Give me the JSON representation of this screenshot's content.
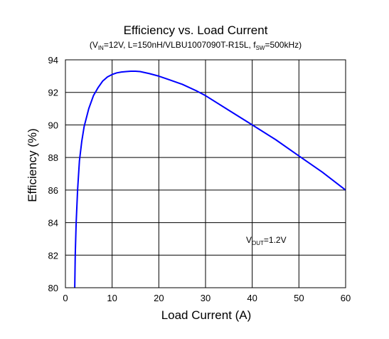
{
  "chart_data": {
    "type": "line",
    "title": "Efficiency vs. Load Current",
    "subtitle_parts": {
      "open": "(V",
      "vin_sub": "IN",
      "mid": "=12V, L=150nH/VLBU1007090T-R15L, f",
      "fsw_sub": "SW",
      "close": "=500kHz)"
    },
    "xlabel": "Load Current (A)",
    "ylabel": "Efficiency (%)",
    "xlim": [
      0,
      60
    ],
    "ylim": [
      80,
      94
    ],
    "xticks": [
      "0",
      "10",
      "20",
      "30",
      "40",
      "50",
      "60"
    ],
    "yticks": [
      "80",
      "82",
      "84",
      "86",
      "88",
      "90",
      "92",
      "94"
    ],
    "grid": true,
    "annotation": {
      "main": "V",
      "sub": "OUT",
      "rest": "=1.2V"
    },
    "series": [
      {
        "color": "#0000ff",
        "x": [
          2.0,
          2.1,
          2.3,
          2.6,
          3.0,
          3.5,
          4.0,
          5.0,
          6.0,
          7.0,
          8.0,
          9.0,
          10.0,
          11.0,
          12.0,
          13.0,
          14.0,
          15.0,
          16.0,
          18.0,
          20.0,
          22.0,
          25.0,
          28.0,
          30.0,
          35.0,
          40.0,
          45.0,
          50.0,
          55.0,
          60.0
        ],
        "y": [
          80.0,
          82.0,
          84.0,
          86.0,
          87.8,
          89.0,
          89.9,
          91.0,
          91.8,
          92.3,
          92.7,
          92.95,
          93.1,
          93.2,
          93.25,
          93.28,
          93.3,
          93.3,
          93.28,
          93.15,
          93.0,
          92.8,
          92.5,
          92.1,
          91.8,
          90.9,
          90.0,
          89.1,
          88.1,
          87.1,
          86.0
        ]
      }
    ]
  }
}
